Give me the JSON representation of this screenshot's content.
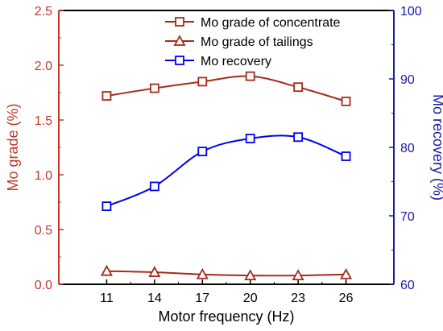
{
  "chart_data": {
    "type": "line",
    "title": "",
    "xlabel": "Motor frequency (Hz)",
    "categories": [
      11,
      14,
      17,
      20,
      23,
      26
    ],
    "y_left": {
      "label": "Mo grade (%)",
      "range": [
        0,
        2.5
      ],
      "ticks": [
        "0.0",
        "0.5",
        "1.0",
        "1.5",
        "2.0",
        "2.5"
      ],
      "color": "#c0392b"
    },
    "y_right": {
      "label": "Mo recovery (%)",
      "range": [
        60,
        100
      ],
      "ticks": [
        "60",
        "70",
        "80",
        "90",
        "100"
      ],
      "color": "#1a1aa6"
    },
    "series": [
      {
        "name": "Mo grade of concentrate",
        "axis": "left",
        "marker": "square",
        "color": "#a52a1a",
        "values": [
          1.72,
          1.79,
          1.85,
          1.9,
          1.8,
          1.67
        ]
      },
      {
        "name": "Mo grade of tailings",
        "axis": "left",
        "marker": "triangle",
        "color": "#a52a1a",
        "values": [
          0.12,
          0.11,
          0.09,
          0.08,
          0.08,
          0.09
        ]
      },
      {
        "name": "Mo recovery",
        "axis": "right",
        "marker": "square",
        "color": "#0000ee",
        "values": [
          71.4,
          74.3,
          79.4,
          81.3,
          81.5,
          78.7
        ]
      }
    ],
    "legend_position": "top-right",
    "grid": false
  }
}
